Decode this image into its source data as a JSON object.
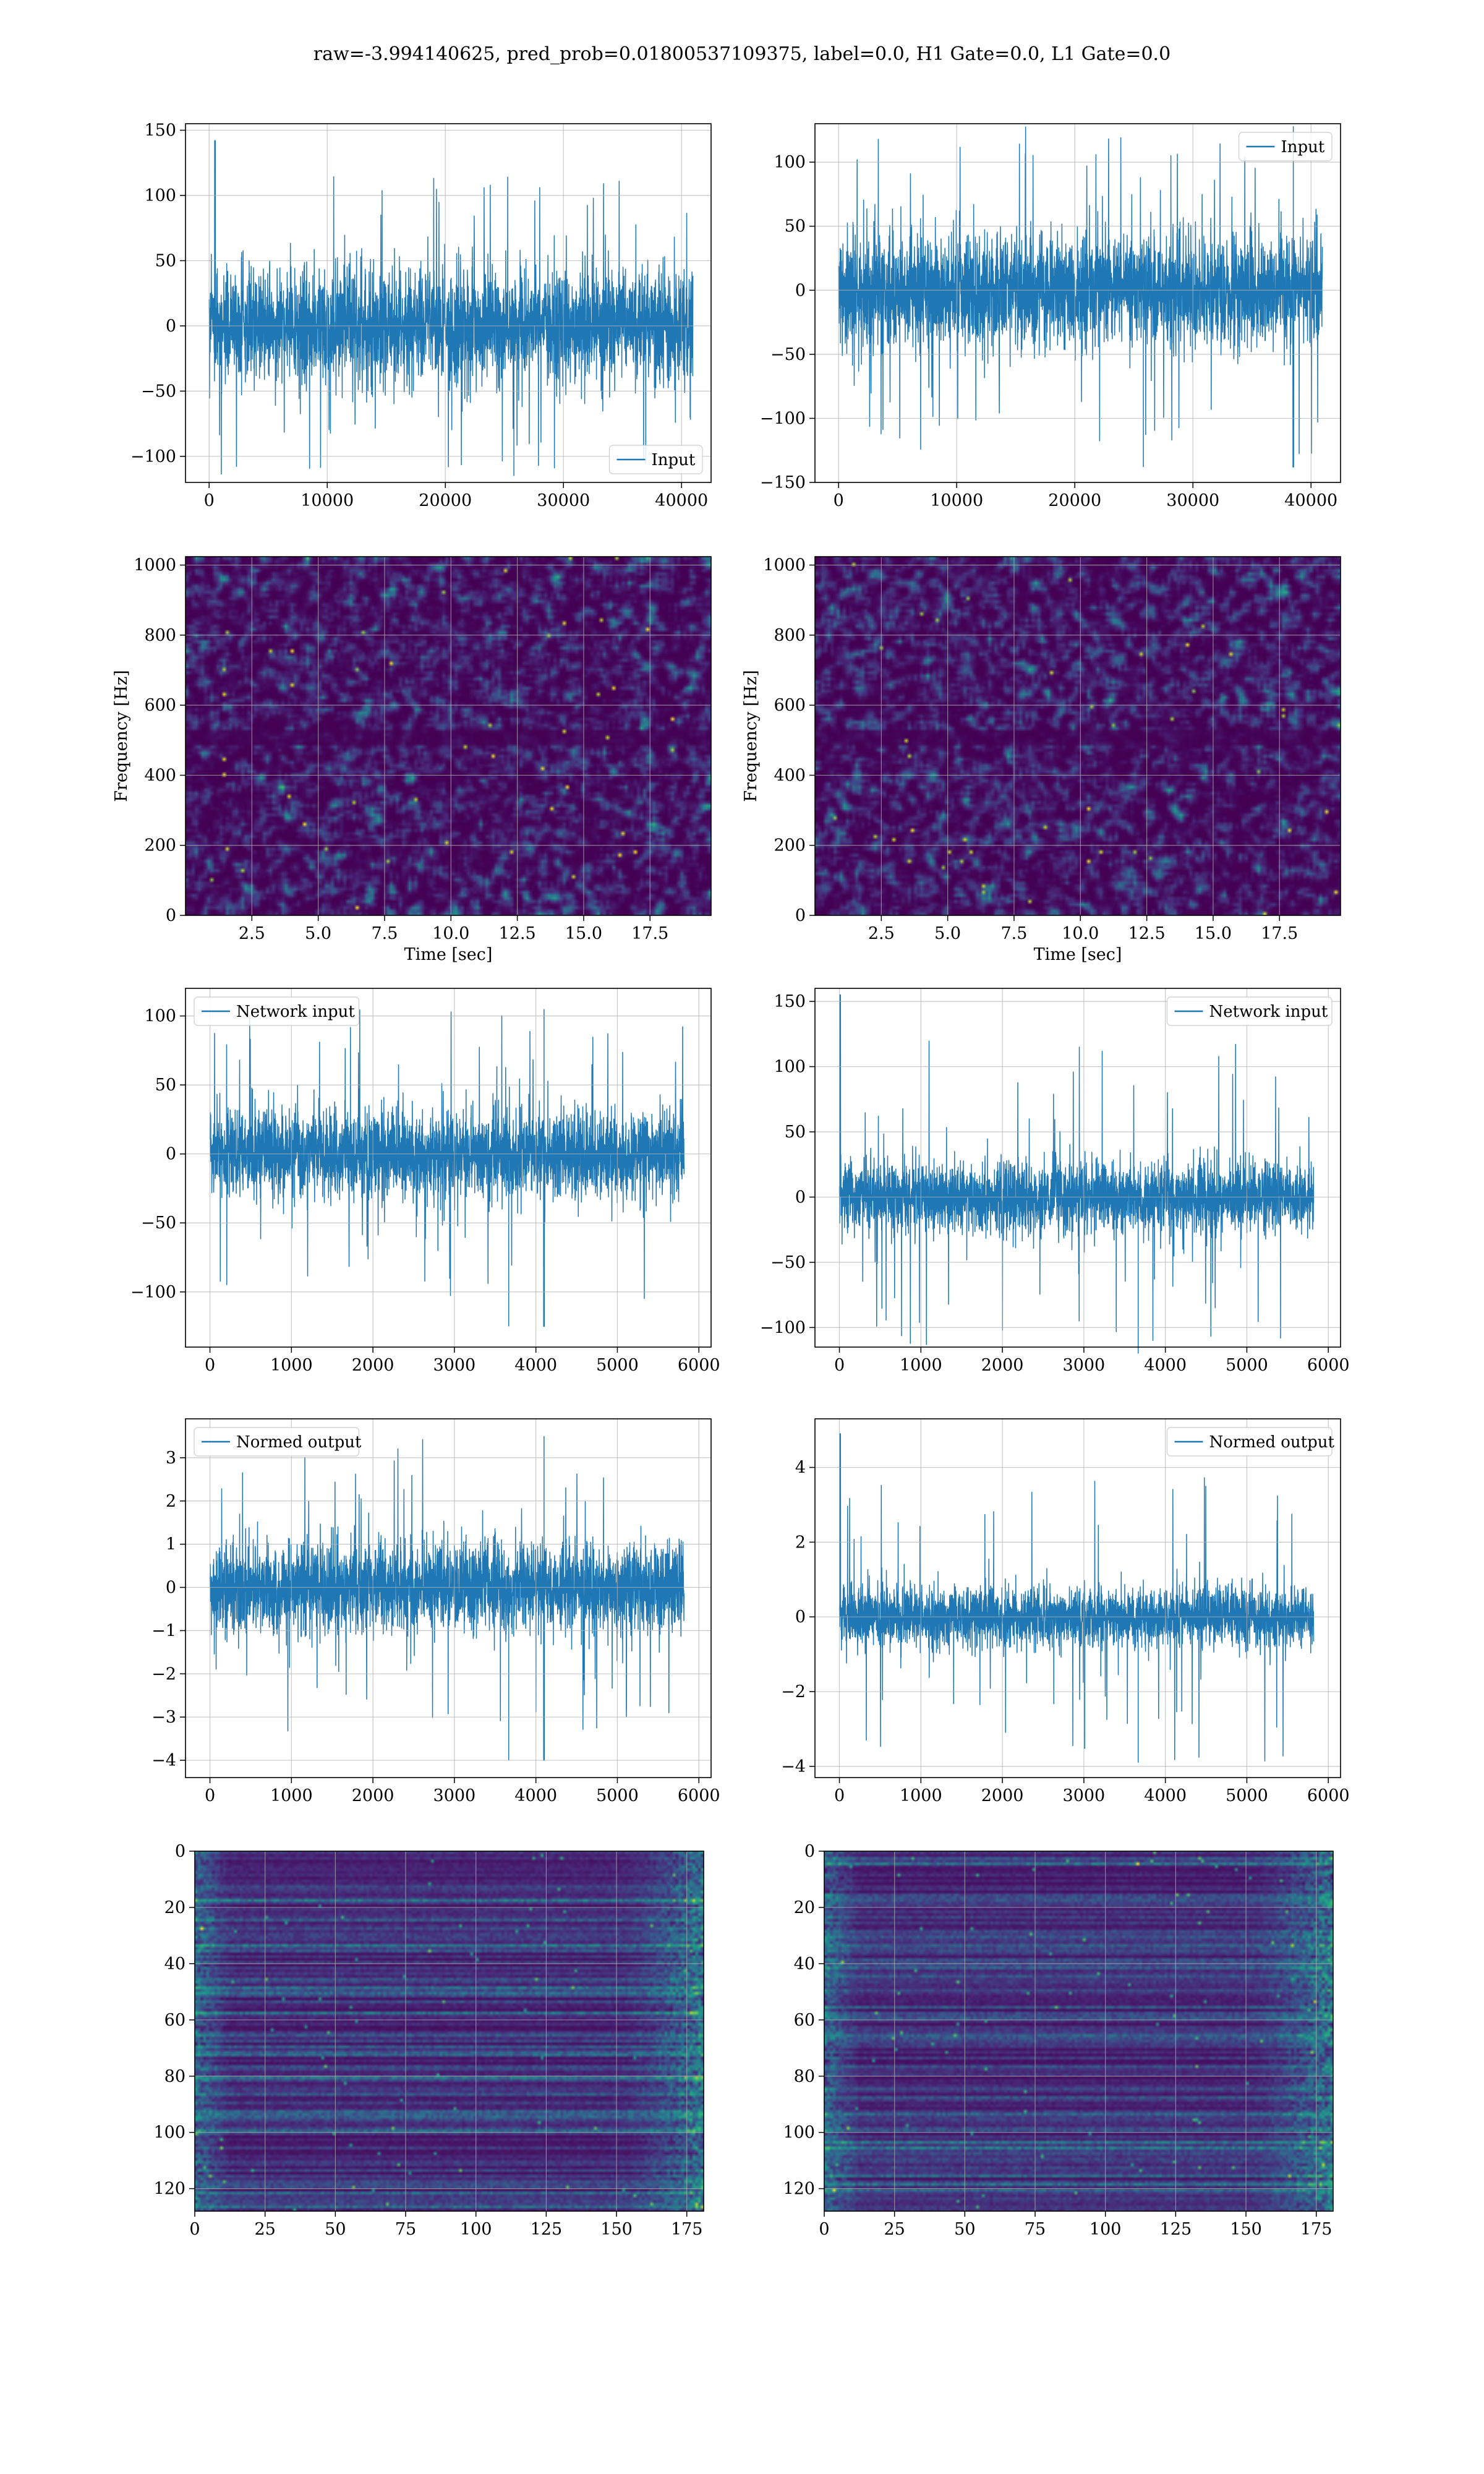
{
  "figure": {
    "title": "raw=-3.994140625, pred_prob=0.01800537109375, label=0.0, H1 Gate=0.0, L1 Gate=0.0"
  },
  "colors": {
    "line": "#1f77b4",
    "viridis_low": "#440154",
    "viridis_mid": "#21918c",
    "viridis_high": "#fde725",
    "grid": "#b0b0b0"
  },
  "chart_data": [
    {
      "id": "ts-h1-input",
      "type": "line",
      "legend": "Input",
      "legend_loc": "lower-right",
      "xlim": [
        -2000,
        42500
      ],
      "ylim": [
        -120,
        155
      ],
      "xticks": [
        0,
        10000,
        20000,
        30000,
        40000
      ],
      "xticklabels": [
        "0",
        "10000",
        "20000",
        "30000",
        "40000"
      ],
      "yticks": [
        -100,
        -50,
        0,
        50,
        100,
        150
      ],
      "yticklabels": [
        "−100",
        "−50",
        "0",
        "50",
        "100",
        "150"
      ],
      "xlabel": "",
      "ylabel": "",
      "signal": {
        "x_start": 0,
        "x_end": 40960,
        "body": 55,
        "peak_pos": 142,
        "peak_neg": -115,
        "spike_x": 500
      }
    },
    {
      "id": "ts-l1-input",
      "type": "line",
      "legend": "Input",
      "legend_loc": "upper-right",
      "xlim": [
        -2000,
        42500
      ],
      "ylim": [
        -150,
        130
      ],
      "xticks": [
        0,
        10000,
        20000,
        30000,
        40000
      ],
      "xticklabels": [
        "0",
        "10000",
        "20000",
        "30000",
        "40000"
      ],
      "yticks": [
        -150,
        -100,
        -50,
        0,
        50,
        100
      ],
      "yticklabels": [
        "−150",
        "−100",
        "−50",
        "0",
        "50",
        "100"
      ],
      "xlabel": "",
      "ylabel": "",
      "signal": {
        "x_start": 0,
        "x_end": 40960,
        "body": 55,
        "peak_pos": 128,
        "peak_neg": -138,
        "spike_x": 38500
      }
    },
    {
      "id": "spec-h1",
      "type": "heatmap",
      "xlim": [
        0,
        19.8
      ],
      "ylim": [
        0,
        1024
      ],
      "xticks": [
        2.5,
        5.0,
        7.5,
        10.0,
        12.5,
        15.0,
        17.5
      ],
      "xticklabels": [
        "2.5",
        "5.0",
        "7.5",
        "10.0",
        "12.5",
        "15.0",
        "17.5"
      ],
      "yticks": [
        0,
        200,
        400,
        600,
        800,
        1000
      ],
      "yticklabels": [
        "0",
        "200",
        "400",
        "600",
        "800",
        "1000"
      ],
      "xlabel": "Time [sec]",
      "ylabel": "Frequency [Hz]",
      "colormap": "viridis"
    },
    {
      "id": "spec-l1",
      "type": "heatmap",
      "xlim": [
        0,
        19.8
      ],
      "ylim": [
        0,
        1024
      ],
      "xticks": [
        2.5,
        5.0,
        7.5,
        10.0,
        12.5,
        15.0,
        17.5
      ],
      "xticklabels": [
        "2.5",
        "5.0",
        "7.5",
        "10.0",
        "12.5",
        "15.0",
        "17.5"
      ],
      "yticks": [
        0,
        200,
        400,
        600,
        800,
        1000
      ],
      "yticklabels": [
        "0",
        "200",
        "400",
        "600",
        "800",
        "1000"
      ],
      "xlabel": "Time [sec]",
      "ylabel": "Frequency [Hz]",
      "colormap": "viridis"
    },
    {
      "id": "ts-h1-network",
      "type": "line",
      "legend": "Network input",
      "legend_loc": "upper-left",
      "xlim": [
        -300,
        6150
      ],
      "ylim": [
        -140,
        120
      ],
      "xticks": [
        0,
        1000,
        2000,
        3000,
        4000,
        5000,
        6000
      ],
      "xticklabels": [
        "0",
        "1000",
        "2000",
        "3000",
        "4000",
        "5000",
        "6000"
      ],
      "yticks": [
        -100,
        -50,
        0,
        50,
        100
      ],
      "yticklabels": [
        "−100",
        "−50",
        "0",
        "50",
        "100"
      ],
      "xlabel": "",
      "ylabel": "",
      "signal": {
        "x_start": 0,
        "x_end": 5820,
        "body": 40,
        "peak_pos": 105,
        "peak_neg": -125,
        "spike_x": 4100
      }
    },
    {
      "id": "ts-l1-network",
      "type": "line",
      "legend": "Network input",
      "legend_loc": "upper-right",
      "xlim": [
        -300,
        6150
      ],
      "ylim": [
        -115,
        160
      ],
      "xticks": [
        0,
        1000,
        2000,
        3000,
        4000,
        5000,
        6000
      ],
      "xticklabels": [
        "0",
        "1000",
        "2000",
        "3000",
        "4000",
        "5000",
        "6000"
      ],
      "yticks": [
        -100,
        -50,
        0,
        50,
        100,
        150
      ],
      "yticklabels": [
        "−100",
        "−50",
        "0",
        "50",
        "100",
        "150"
      ],
      "xlabel": "",
      "ylabel": "",
      "signal": {
        "x_start": 0,
        "x_end": 5820,
        "body": 35,
        "peak_pos": 155,
        "peak_neg": -120,
        "spike_x": 10
      }
    },
    {
      "id": "ts-h1-normed",
      "type": "line",
      "legend": "Normed output",
      "legend_loc": "upper-left",
      "xlim": [
        -300,
        6150
      ],
      "ylim": [
        -4.4,
        3.9
      ],
      "xticks": [
        0,
        1000,
        2000,
        3000,
        4000,
        5000,
        6000
      ],
      "xticklabels": [
        "0",
        "1000",
        "2000",
        "3000",
        "4000",
        "5000",
        "6000"
      ],
      "yticks": [
        -4,
        -3,
        -2,
        -1,
        0,
        1,
        2,
        3
      ],
      "yticklabels": [
        "−4",
        "−3",
        "−2",
        "−1",
        "0",
        "1",
        "2",
        "3"
      ],
      "xlabel": "",
      "ylabel": "",
      "signal": {
        "x_start": 0,
        "x_end": 5820,
        "body": 1.3,
        "peak_pos": 3.5,
        "peak_neg": -4.0,
        "spike_x": 4100
      }
    },
    {
      "id": "ts-l1-normed",
      "type": "line",
      "legend": "Normed output",
      "legend_loc": "upper-right",
      "xlim": [
        -300,
        6150
      ],
      "ylim": [
        -4.3,
        5.3
      ],
      "xticks": [
        0,
        1000,
        2000,
        3000,
        4000,
        5000,
        6000
      ],
      "xticklabels": [
        "0",
        "1000",
        "2000",
        "3000",
        "4000",
        "5000",
        "6000"
      ],
      "yticks": [
        -4,
        -2,
        0,
        2,
        4
      ],
      "yticklabels": [
        "−4",
        "−2",
        "0",
        "2",
        "4"
      ],
      "xlabel": "",
      "ylabel": "",
      "signal": {
        "x_start": 0,
        "x_end": 5820,
        "body": 1.0,
        "peak_pos": 4.9,
        "peak_neg": -3.9,
        "spike_x": 10
      }
    },
    {
      "id": "feat-h1",
      "type": "heatmap",
      "xlim": [
        0,
        181
      ],
      "ylim": [
        128,
        0
      ],
      "xticks": [
        0,
        25,
        50,
        75,
        100,
        125,
        150,
        175
      ],
      "xticklabels": [
        "0",
        "25",
        "50",
        "75",
        "100",
        "125",
        "150",
        "175"
      ],
      "yticks": [
        0,
        20,
        40,
        60,
        80,
        100,
        120
      ],
      "yticklabels": [
        "0",
        "20",
        "40",
        "60",
        "80",
        "100",
        "120"
      ],
      "xlabel": "",
      "ylabel": "",
      "colormap": "viridis"
    },
    {
      "id": "feat-l1",
      "type": "heatmap",
      "xlim": [
        0,
        181
      ],
      "ylim": [
        128,
        0
      ],
      "xticks": [
        0,
        25,
        50,
        75,
        100,
        125,
        150,
        175
      ],
      "xticklabels": [
        "0",
        "25",
        "50",
        "75",
        "100",
        "125",
        "150",
        "175"
      ],
      "yticks": [
        0,
        20,
        40,
        60,
        80,
        100,
        120
      ],
      "yticklabels": [
        "0",
        "20",
        "40",
        "60",
        "80",
        "100",
        "120"
      ],
      "xlabel": "",
      "ylabel": "",
      "colormap": "viridis"
    }
  ]
}
